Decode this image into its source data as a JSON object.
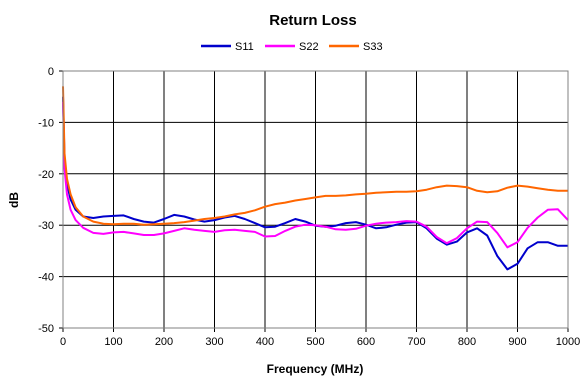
{
  "chart_data": {
    "type": "line",
    "title": "Return Loss",
    "xlabel": "Frequency (MHz)",
    "ylabel": "dB",
    "xlim": [
      0,
      1000
    ],
    "ylim": [
      -50,
      0
    ],
    "x_ticks": [
      0,
      100,
      200,
      300,
      400,
      500,
      600,
      700,
      800,
      900,
      1000
    ],
    "y_ticks": [
      0,
      -10,
      -20,
      -30,
      -40,
      -50
    ],
    "grid": true,
    "legend_position": "top",
    "series": [
      {
        "name": "S11",
        "color": "#0000cc",
        "points": [
          [
            0,
            -5
          ],
          [
            3,
            -17
          ],
          [
            8,
            -22
          ],
          [
            15,
            -25
          ],
          [
            25,
            -27
          ],
          [
            40,
            -28.3
          ],
          [
            60,
            -28.6
          ],
          [
            80,
            -28.3
          ],
          [
            100,
            -28.2
          ],
          [
            120,
            -28.1
          ],
          [
            140,
            -28.8
          ],
          [
            160,
            -29.3
          ],
          [
            180,
            -29.5
          ],
          [
            200,
            -28.8
          ],
          [
            220,
            -28
          ],
          [
            240,
            -28.3
          ],
          [
            260,
            -28.9
          ],
          [
            280,
            -29.3
          ],
          [
            300,
            -29
          ],
          [
            320,
            -28.5
          ],
          [
            340,
            -28.2
          ],
          [
            360,
            -28.8
          ],
          [
            380,
            -29.6
          ],
          [
            400,
            -30.4
          ],
          [
            420,
            -30.3
          ],
          [
            440,
            -29.6
          ],
          [
            460,
            -28.8
          ],
          [
            480,
            -29.3
          ],
          [
            500,
            -30.1
          ],
          [
            520,
            -30.3
          ],
          [
            540,
            -30.1
          ],
          [
            560,
            -29.6
          ],
          [
            580,
            -29.4
          ],
          [
            600,
            -29.9
          ],
          [
            620,
            -30.6
          ],
          [
            640,
            -30.4
          ],
          [
            660,
            -29.9
          ],
          [
            680,
            -29.5
          ],
          [
            700,
            -29.4
          ],
          [
            720,
            -30.6
          ],
          [
            740,
            -32.6
          ],
          [
            760,
            -33.8
          ],
          [
            780,
            -33.2
          ],
          [
            800,
            -31.4
          ],
          [
            820,
            -30.6
          ],
          [
            840,
            -32
          ],
          [
            860,
            -36
          ],
          [
            880,
            -38.6
          ],
          [
            900,
            -37.5
          ],
          [
            920,
            -34.5
          ],
          [
            940,
            -33.3
          ],
          [
            960,
            -33.3
          ],
          [
            980,
            -34
          ],
          [
            1000,
            -34
          ]
        ]
      },
      {
        "name": "S22",
        "color": "#ff00ff",
        "points": [
          [
            0,
            -6
          ],
          [
            3,
            -19
          ],
          [
            8,
            -24
          ],
          [
            15,
            -27
          ],
          [
            25,
            -29
          ],
          [
            40,
            -30.5
          ],
          [
            60,
            -31.5
          ],
          [
            80,
            -31.7
          ],
          [
            100,
            -31.4
          ],
          [
            120,
            -31.3
          ],
          [
            140,
            -31.6
          ],
          [
            160,
            -31.9
          ],
          [
            180,
            -31.9
          ],
          [
            200,
            -31.6
          ],
          [
            220,
            -31.1
          ],
          [
            240,
            -30.6
          ],
          [
            260,
            -30.9
          ],
          [
            280,
            -31.1
          ],
          [
            300,
            -31.3
          ],
          [
            320,
            -31
          ],
          [
            340,
            -30.9
          ],
          [
            360,
            -31.1
          ],
          [
            380,
            -31.3
          ],
          [
            400,
            -32.2
          ],
          [
            420,
            -32.1
          ],
          [
            440,
            -31.1
          ],
          [
            460,
            -30.3
          ],
          [
            480,
            -29.9
          ],
          [
            500,
            -30
          ],
          [
            520,
            -30.3
          ],
          [
            540,
            -30.8
          ],
          [
            560,
            -30.9
          ],
          [
            580,
            -30.7
          ],
          [
            600,
            -30.1
          ],
          [
            620,
            -29.7
          ],
          [
            640,
            -29.5
          ],
          [
            660,
            -29.4
          ],
          [
            680,
            -29.2
          ],
          [
            700,
            -29.3
          ],
          [
            720,
            -30.3
          ],
          [
            740,
            -32.3
          ],
          [
            760,
            -33.5
          ],
          [
            780,
            -32.5
          ],
          [
            800,
            -30.6
          ],
          [
            820,
            -29.3
          ],
          [
            840,
            -29.4
          ],
          [
            860,
            -31.5
          ],
          [
            880,
            -34.3
          ],
          [
            900,
            -33.3
          ],
          [
            920,
            -30.5
          ],
          [
            940,
            -28.5
          ],
          [
            960,
            -27
          ],
          [
            980,
            -26.9
          ],
          [
            1000,
            -29
          ]
        ]
      },
      {
        "name": "S33",
        "color": "#ff6600",
        "points": [
          [
            0,
            -3
          ],
          [
            3,
            -16
          ],
          [
            8,
            -21
          ],
          [
            15,
            -24
          ],
          [
            25,
            -26.5
          ],
          [
            40,
            -28.3
          ],
          [
            60,
            -29.3
          ],
          [
            80,
            -29.7
          ],
          [
            100,
            -29.8
          ],
          [
            120,
            -29.7
          ],
          [
            140,
            -29.7
          ],
          [
            160,
            -29.9
          ],
          [
            180,
            -29.8
          ],
          [
            200,
            -29.7
          ],
          [
            220,
            -29.6
          ],
          [
            240,
            -29.4
          ],
          [
            260,
            -29.1
          ],
          [
            280,
            -28.8
          ],
          [
            300,
            -28.6
          ],
          [
            320,
            -28.3
          ],
          [
            340,
            -27.9
          ],
          [
            360,
            -27.6
          ],
          [
            380,
            -27.1
          ],
          [
            400,
            -26.4
          ],
          [
            420,
            -25.9
          ],
          [
            440,
            -25.6
          ],
          [
            460,
            -25.2
          ],
          [
            480,
            -24.9
          ],
          [
            500,
            -24.6
          ],
          [
            520,
            -24.3
          ],
          [
            540,
            -24.3
          ],
          [
            560,
            -24.2
          ],
          [
            580,
            -24
          ],
          [
            600,
            -23.9
          ],
          [
            620,
            -23.7
          ],
          [
            640,
            -23.6
          ],
          [
            660,
            -23.5
          ],
          [
            680,
            -23.5
          ],
          [
            700,
            -23.4
          ],
          [
            720,
            -23.1
          ],
          [
            740,
            -22.6
          ],
          [
            760,
            -22.3
          ],
          [
            780,
            -22.4
          ],
          [
            800,
            -22.6
          ],
          [
            820,
            -23.3
          ],
          [
            840,
            -23.6
          ],
          [
            860,
            -23.4
          ],
          [
            880,
            -22.7
          ],
          [
            900,
            -22.3
          ],
          [
            920,
            -22.5
          ],
          [
            940,
            -22.8
          ],
          [
            960,
            -23.1
          ],
          [
            980,
            -23.3
          ],
          [
            1000,
            -23.3
          ]
        ]
      }
    ]
  }
}
